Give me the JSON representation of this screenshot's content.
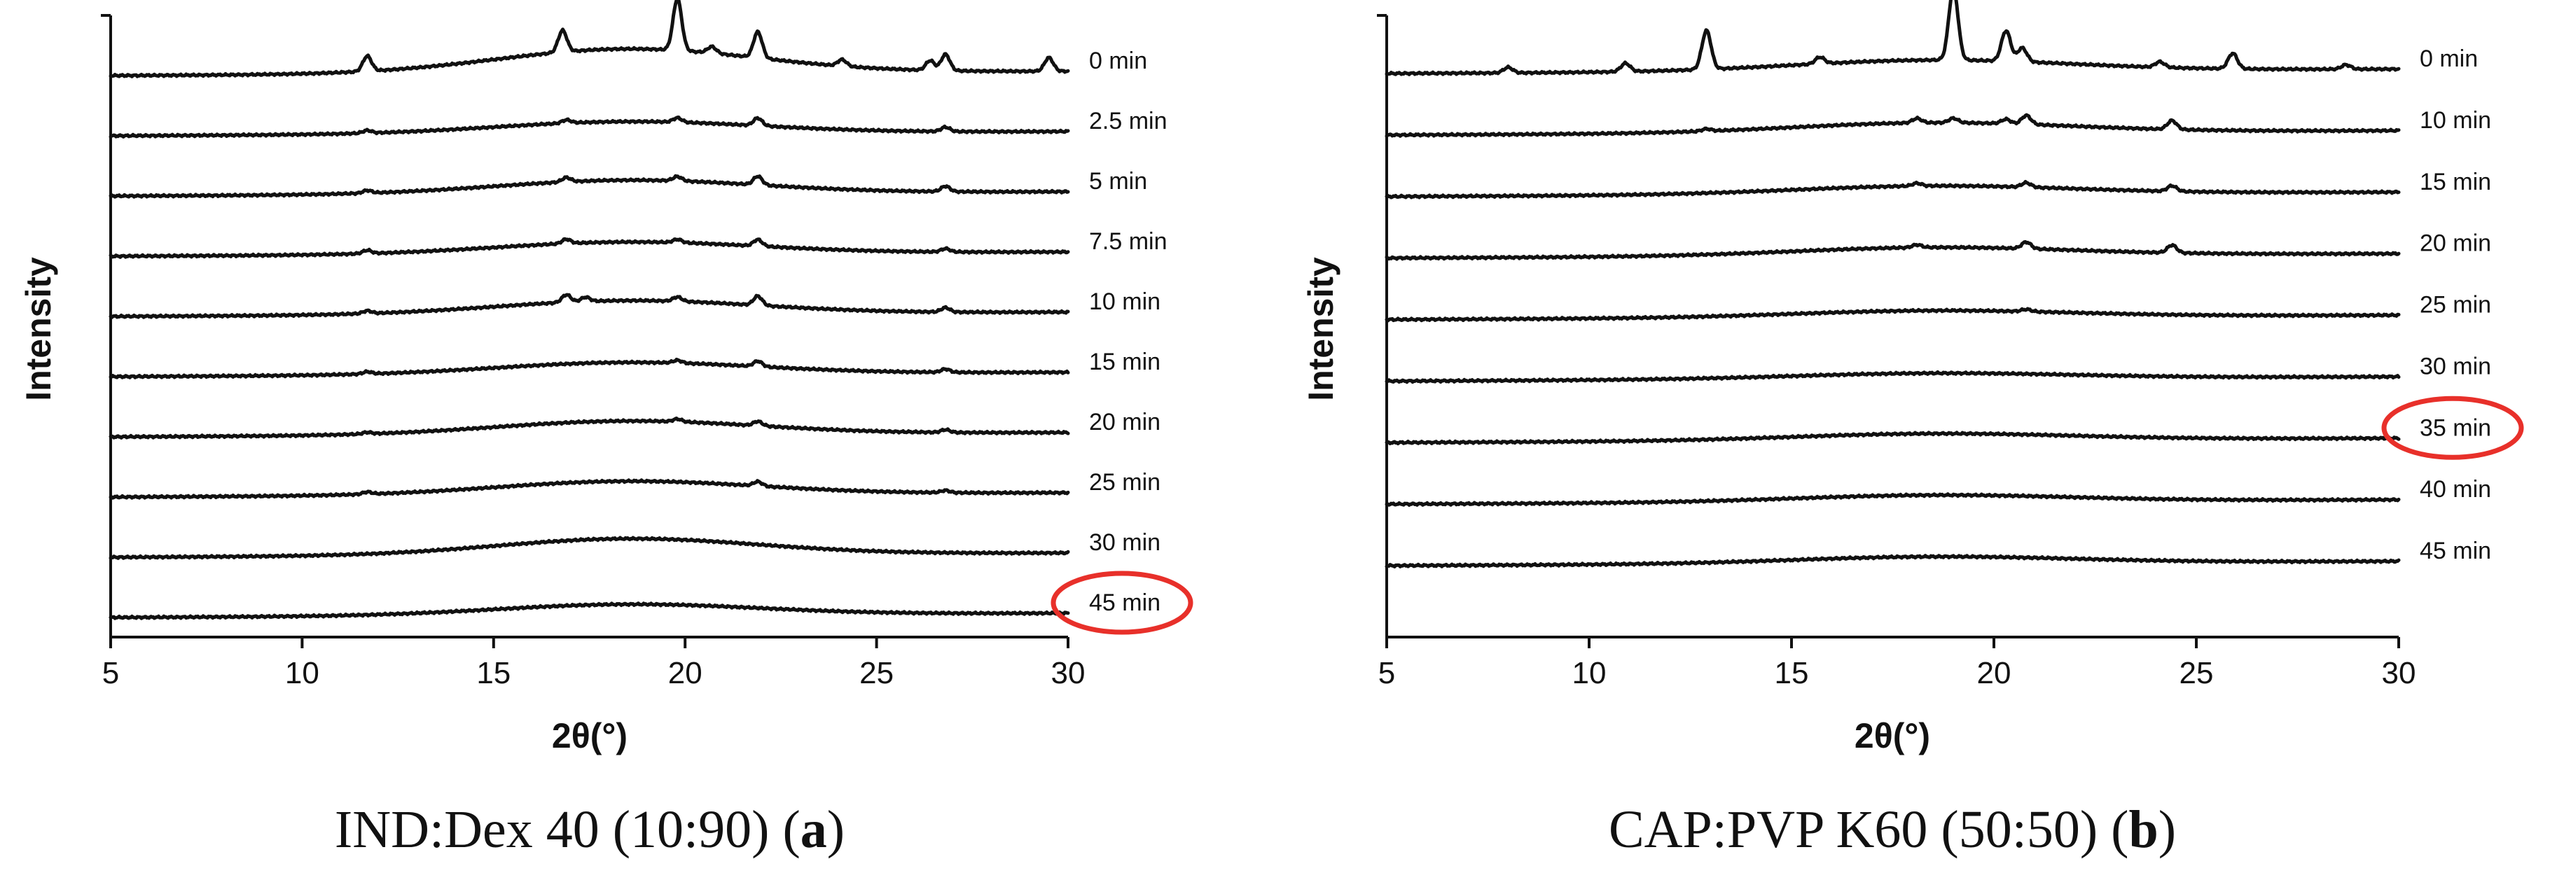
{
  "chart_data": [
    {
      "type": "line",
      "caption": "IND:Dex 40 (10:90)",
      "caption_open": "(",
      "caption_letter": "a",
      "caption_close": ")",
      "xlabel": "2θ(°)",
      "ylabel": "Intensity",
      "xlim": [
        5,
        30
      ],
      "xticks": [
        "5",
        "10",
        "15",
        "20",
        "25",
        "30"
      ],
      "highlighted_series": "45 min",
      "highlight_color": "#e8302a",
      "series": [
        {
          "name": "0 min",
          "baseline": 9.0,
          "hump": 0.45,
          "peaks": [
            [
              11.7,
              0.28
            ],
            [
              16.8,
              0.4
            ],
            [
              19.8,
              0.95
            ],
            [
              20.7,
              0.12
            ],
            [
              21.9,
              0.48
            ],
            [
              24.1,
              0.12
            ],
            [
              26.4,
              0.18
            ],
            [
              26.8,
              0.3
            ],
            [
              29.5,
              0.25
            ]
          ]
        },
        {
          "name": "2.5 min",
          "baseline": 8.0,
          "hump": 0.22,
          "peaks": [
            [
              11.7,
              0.05
            ],
            [
              16.9,
              0.06
            ],
            [
              19.8,
              0.08
            ],
            [
              21.9,
              0.14
            ],
            [
              26.8,
              0.08
            ]
          ]
        },
        {
          "name": "5 min",
          "baseline": 7.0,
          "hump": 0.25,
          "peaks": [
            [
              11.7,
              0.05
            ],
            [
              16.9,
              0.08
            ],
            [
              19.8,
              0.08
            ],
            [
              21.9,
              0.16
            ],
            [
              26.8,
              0.1
            ]
          ]
        },
        {
          "name": "7.5 min",
          "baseline": 6.0,
          "hump": 0.22,
          "peaks": [
            [
              11.7,
              0.06
            ],
            [
              16.9,
              0.08
            ],
            [
              19.8,
              0.06
            ],
            [
              21.9,
              0.12
            ],
            [
              26.8,
              0.06
            ]
          ]
        },
        {
          "name": "10 min",
          "baseline": 5.0,
          "hump": 0.25,
          "peaks": [
            [
              11.7,
              0.05
            ],
            [
              16.9,
              0.14
            ],
            [
              17.4,
              0.08
            ],
            [
              19.8,
              0.08
            ],
            [
              21.9,
              0.17
            ],
            [
              26.8,
              0.08
            ]
          ]
        },
        {
          "name": "15 min",
          "baseline": 4.0,
          "hump": 0.22,
          "peaks": [
            [
              11.7,
              0.04
            ],
            [
              19.8,
              0.05
            ],
            [
              21.9,
              0.1
            ],
            [
              26.8,
              0.06
            ]
          ]
        },
        {
          "name": "20 min",
          "baseline": 3.0,
          "hump": 0.25,
          "peaks": [
            [
              11.7,
              0.03
            ],
            [
              19.8,
              0.05
            ],
            [
              21.9,
              0.08
            ],
            [
              26.8,
              0.05
            ]
          ]
        },
        {
          "name": "25 min",
          "baseline": 2.0,
          "hump": 0.25,
          "peaks": [
            [
              11.7,
              0.04
            ],
            [
              21.9,
              0.08
            ],
            [
              26.8,
              0.04
            ]
          ]
        },
        {
          "name": "30 min",
          "baseline": 1.0,
          "hump": 0.3,
          "peaks": []
        },
        {
          "name": "45 min",
          "baseline": 0.0,
          "hump": 0.2,
          "peaks": []
        }
      ]
    },
    {
      "type": "line",
      "caption": "CAP:PVP K60 (50:50)",
      "caption_open": "(",
      "caption_letter": "b",
      "caption_close": ")",
      "xlabel": "2θ(°)",
      "ylabel": "Intensity",
      "xlim": [
        5,
        30
      ],
      "xticks": [
        "5",
        "10",
        "15",
        "20",
        "25",
        "30"
      ],
      "highlighted_series": "35 min",
      "highlight_color": "#e8302a",
      "series": [
        {
          "name": "0 min",
          "baseline": 8.0,
          "hump": 0.2,
          "peaks": [
            [
              8.0,
              0.1
            ],
            [
              10.9,
              0.15
            ],
            [
              12.9,
              0.7
            ],
            [
              15.7,
              0.12
            ],
            [
              19.0,
              1.3
            ],
            [
              20.3,
              0.55
            ],
            [
              20.7,
              0.25
            ],
            [
              24.1,
              0.1
            ],
            [
              25.9,
              0.28
            ],
            [
              28.7,
              0.08
            ]
          ]
        },
        {
          "name": "10 min",
          "baseline": 7.0,
          "hump": 0.18,
          "peaks": [
            [
              12.9,
              0.04
            ],
            [
              18.1,
              0.08
            ],
            [
              19.0,
              0.08
            ],
            [
              20.3,
              0.08
            ],
            [
              20.8,
              0.16
            ],
            [
              24.4,
              0.16
            ]
          ]
        },
        {
          "name": "15 min",
          "baseline": 6.0,
          "hump": 0.15,
          "peaks": [
            [
              18.1,
              0.05
            ],
            [
              20.8,
              0.08
            ],
            [
              24.4,
              0.1
            ]
          ]
        },
        {
          "name": "20 min",
          "baseline": 5.0,
          "hump": 0.15,
          "peaks": [
            [
              18.1,
              0.05
            ],
            [
              20.8,
              0.12
            ],
            [
              24.4,
              0.14
            ]
          ]
        },
        {
          "name": "25 min",
          "baseline": 4.0,
          "hump": 0.12,
          "peaks": [
            [
              20.8,
              0.04
            ]
          ]
        },
        {
          "name": "30 min",
          "baseline": 3.0,
          "hump": 0.1,
          "peaks": []
        },
        {
          "name": "35 min",
          "baseline": 2.0,
          "hump": 0.12,
          "peaks": []
        },
        {
          "name": "40 min",
          "baseline": 1.0,
          "hump": 0.12,
          "peaks": []
        },
        {
          "name": "45 min",
          "baseline": 0.0,
          "hump": 0.12,
          "peaks": []
        }
      ]
    }
  ]
}
